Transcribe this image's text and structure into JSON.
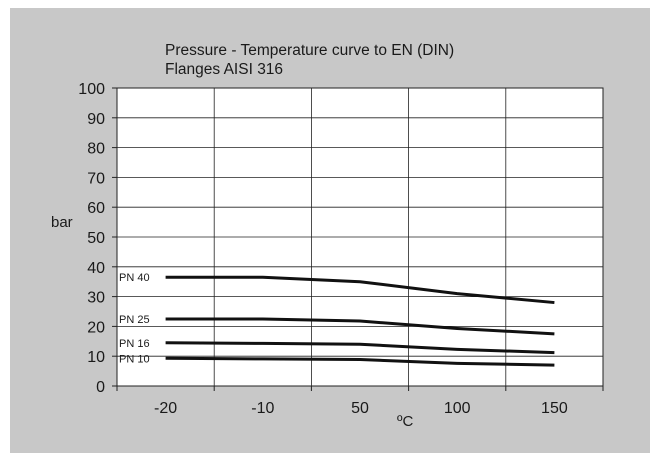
{
  "chart_data": {
    "type": "line",
    "title": "Pressure - Temperature curve to EN (DIN)",
    "subtitle": "Flanges AISI 316",
    "xlabel": "ºC",
    "ylabel": "bar",
    "categories": [
      "-20",
      "-10",
      "50",
      "100",
      "150"
    ],
    "ylim": [
      0,
      100
    ],
    "yticks": [
      0,
      10,
      20,
      30,
      40,
      50,
      60,
      70,
      80,
      90,
      100
    ],
    "grid": true,
    "series": [
      {
        "name": "PN 40",
        "x": [
          -20,
          -10,
          50,
          100,
          150
        ],
        "y": [
          36.5,
          36.5,
          35,
          31,
          28
        ]
      },
      {
        "name": "PN 25",
        "x": [
          -20,
          -10,
          50,
          100,
          150
        ],
        "y": [
          22.5,
          22.5,
          21.8,
          19.3,
          17.5
        ]
      },
      {
        "name": "PN 16",
        "x": [
          -20,
          -10,
          50,
          100,
          150
        ],
        "y": [
          14.5,
          14.3,
          14,
          12.3,
          11.2
        ]
      },
      {
        "name": "PN 10",
        "x": [
          -20,
          -10,
          50,
          100,
          150
        ],
        "y": [
          9.3,
          9.1,
          8.9,
          7.6,
          7
        ]
      }
    ]
  }
}
